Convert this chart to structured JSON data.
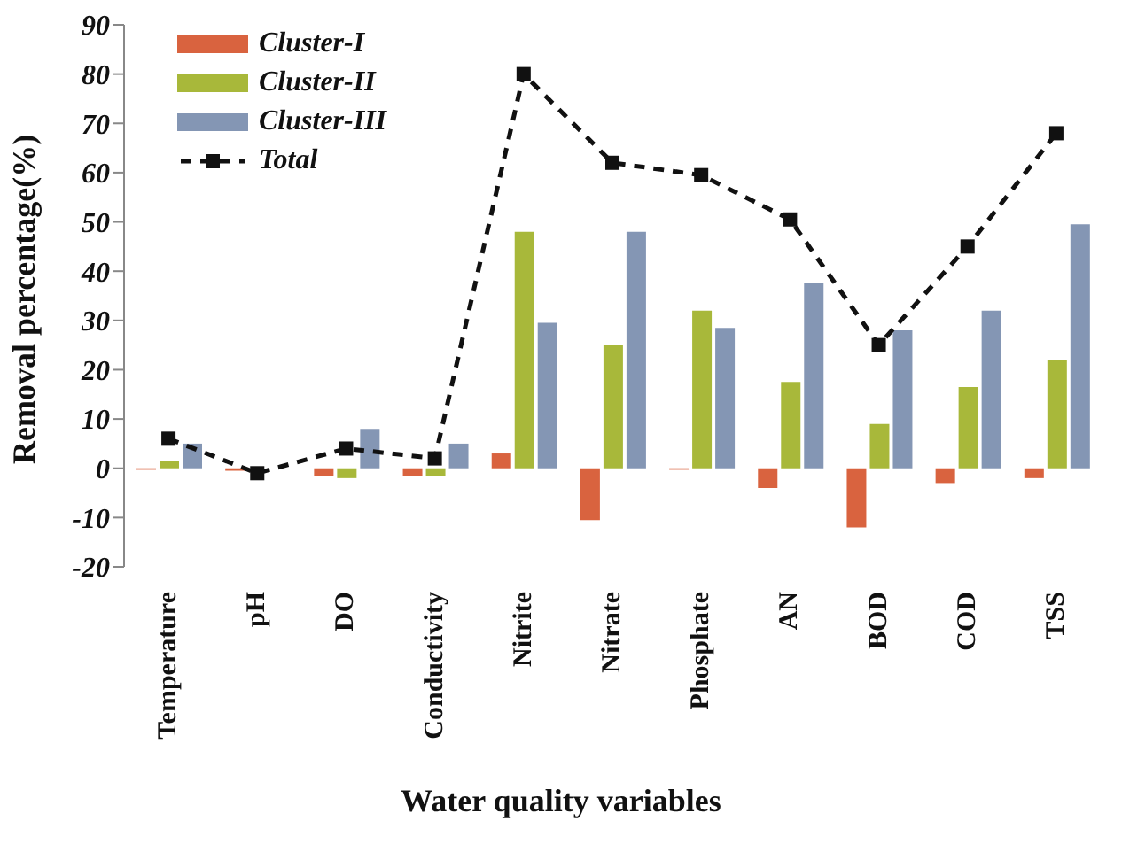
{
  "chart_data": {
    "type": "bar",
    "xlabel": "Water quality variables",
    "ylabel": "Removal percentage(%)",
    "categories": [
      "Temperature",
      "pH",
      "DO",
      "Conductivity",
      "Nitrite",
      "Nitrate",
      "Phosphate",
      "AN",
      "BOD",
      "COD",
      "TSS"
    ],
    "series": [
      {
        "name": "Cluster-I",
        "color": "#d9633f",
        "values": [
          -0.3,
          -0.5,
          -1.5,
          -1.5,
          3,
          -10.5,
          -0.3,
          -4,
          -12,
          -3,
          -2
        ]
      },
      {
        "name": "Cluster-II",
        "color": "#a8b83a",
        "values": [
          1.5,
          null,
          -2,
          -1.5,
          48,
          25,
          32,
          17.5,
          9,
          16.5,
          22
        ]
      },
      {
        "name": "Cluster-III",
        "color": "#8496b4",
        "values": [
          5,
          0,
          8,
          5,
          29.5,
          48,
          28.5,
          37.5,
          28,
          32,
          49.5
        ]
      },
      {
        "name": "Total",
        "type": "line",
        "color": "#111111",
        "marker": "square",
        "line_style": "dashed",
        "values": [
          6,
          -1,
          4,
          2,
          80,
          62,
          59.5,
          50.5,
          25,
          45,
          68
        ]
      }
    ],
    "ylim": [
      -20,
      90
    ],
    "yticks": [
      -20,
      -10,
      0,
      10,
      20,
      30,
      40,
      50,
      60,
      70,
      80,
      90
    ],
    "legend": "top left"
  }
}
